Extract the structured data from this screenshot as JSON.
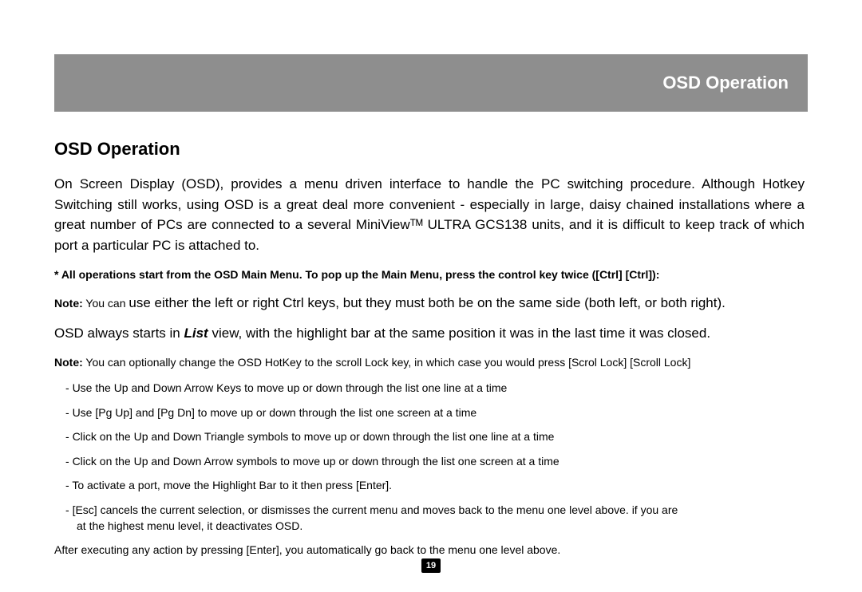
{
  "colors": {
    "banner_bg": "#8e8e8e",
    "banner_text": "#ffffff",
    "text": "#000000",
    "page_bg": "#ffffff",
    "page_num_bg": "#000000",
    "page_num_text": "#ffffff"
  },
  "typography": {
    "banner_title_size": 22,
    "page_title_size": 22,
    "body_size": 17,
    "small_size": 14,
    "tiny_size": 13,
    "page_num_size": 11
  },
  "banner": {
    "title": "OSD Operation"
  },
  "title": "OSD Operation",
  "para_intro": "On Screen Display (OSD), provides a menu driven interface to handle the PC switching procedure.  Although Hotkey Switching still works, using OSD is a great deal more convenient - especially in large, daisy chained installations where a great number of PCs are connected to a several MiniViewᵀᴹ ULTRA GCS138 units, and it is difficult to keep track of which port a particular PC is attached to.",
  "star_line": "* All operations start from the OSD Main Menu.  To pop up the Main Menu, press the control key twice ([Ctrl] [Ctrl]):",
  "note1_label": "Note:",
  "note1_small": " You can ",
  "note1_rest": "use either the left or right Ctrl keys, but they must both be on the same side (both left, or both right).",
  "list_sentence_pre": "OSD always starts in ",
  "list_sentence_em": "List",
  "list_sentence_post": " view, with the highlight bar at the same position it was in the last time it was closed.",
  "note2_label": "Note:",
  "note2_rest": " You can optionally change the OSD HotKey to the scroll Lock key, in which case you would press [Scrol Lock] [Scroll Lock]",
  "bullets": [
    "Use the Up and Down Arrow Keys to move up or down through the list one line at a time",
    "Use [Pg Up] and [Pg Dn] to move up or down through the list one screen at a time",
    "Click on the Up and Down Triangle symbols to move up or down through the list one line at a time",
    "Click on the Up and Down Arrow symbols to move up or down through the list one screen at a time",
    "To activate a port, move the Highlight Bar to it then press [Enter].",
    "[Esc] cancels the current selection, or dismisses the current menu and moves back to the menu one level above.  if you are"
  ],
  "bullet_cont": "at the highest menu level, it deactivates OSD.",
  "after_text": "After executing any action by pressing [Enter], you automatically go back to the menu one level above.",
  "page_number": "19"
}
